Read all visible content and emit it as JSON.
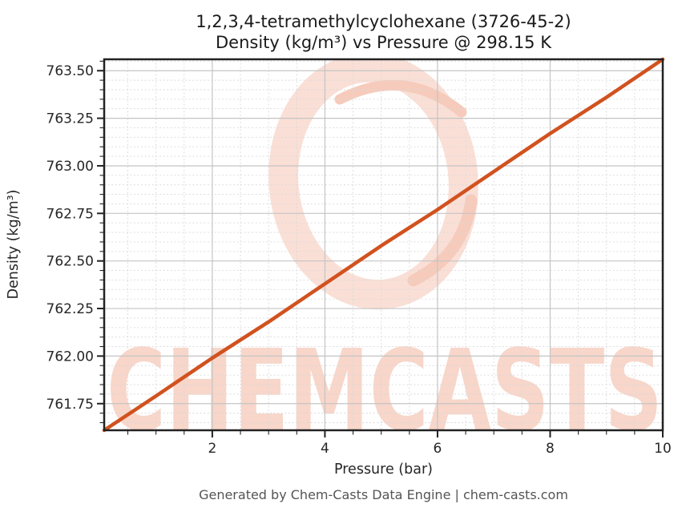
{
  "page": {
    "background": "#ffffff"
  },
  "header": {
    "title_line1": "1,2,3,4-tetramethylcyclohexane (3726-45-2)",
    "title_line2": "Density (kg/m³) vs Pressure @ 298.15 K"
  },
  "watermark": {
    "text": "CHEMCASTS",
    "ring_color": "#fadfd6",
    "accent_color": "#f6cbbb",
    "text_color": "#f8d6ca"
  },
  "footer": {
    "credit": "Generated by Chem-Casts Data Engine | chem-casts.com"
  },
  "colors": {
    "line": "#d1521f",
    "spine": "#222222",
    "grid_major": "#c4c4c4",
    "grid_minor": "#d9d9d9",
    "tick_text": "#262626",
    "footer_text": "#555555"
  },
  "chart_data": {
    "type": "line",
    "title": "1,2,3,4-tetramethylcyclohexane (3726-45-2) — Density (kg/m³) vs Pressure @ 298.15 K",
    "xlabel": "Pressure (bar)",
    "ylabel": "Density (kg/m³)",
    "xlim": [
      0.08,
      10
    ],
    "ylim": [
      761.61,
      763.56
    ],
    "x": [
      0.08,
      1,
      2,
      3,
      4,
      5,
      6,
      7,
      8,
      9,
      10
    ],
    "series": [
      {
        "name": "Density at 298.15 K",
        "values": [
          761.61,
          761.79,
          761.99,
          762.18,
          762.38,
          762.58,
          762.77,
          762.97,
          763.17,
          763.36,
          763.56
        ]
      }
    ],
    "x_ticks": {
      "values": [
        2,
        4,
        6,
        8,
        10
      ],
      "labels": [
        "2",
        "4",
        "6",
        "8",
        "10"
      ],
      "minor_step": 0.5
    },
    "y_ticks": {
      "values": [
        761.75,
        762.0,
        762.25,
        762.5,
        762.75,
        763.0,
        763.25,
        763.5
      ],
      "labels": [
        "761.75",
        "762.00",
        "762.25",
        "762.50",
        "762.75",
        "763.00",
        "763.25",
        "763.50"
      ],
      "minor_step": 0.05
    },
    "grid": {
      "major": true,
      "minor": true
    },
    "legend": "none"
  }
}
